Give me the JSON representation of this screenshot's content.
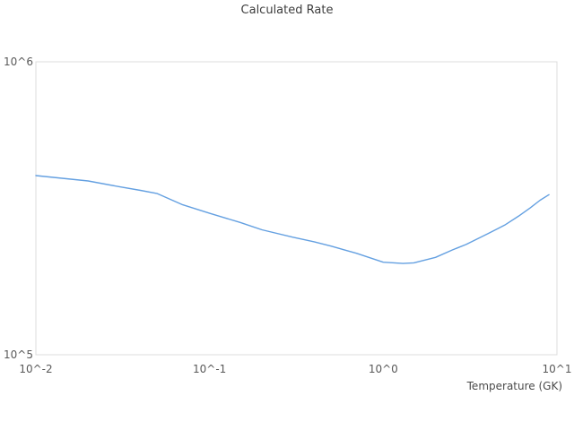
{
  "title": "Calculated Rate",
  "colors": {
    "line": "#64a0e1",
    "frame": "#dcdcdc",
    "title_text": "#3c3c3c",
    "tick_text": "#595959",
    "axis_title_text": "#4a4a4a",
    "background": "#ffffff"
  },
  "chart_data": {
    "type": "line",
    "title": "Calculated Rate",
    "xlabel": "Temperature (GK)",
    "ylabel": "",
    "x_scale": "log",
    "y_scale": "log",
    "xlim": [
      0.01,
      10
    ],
    "ylim": [
      100000,
      1000000
    ],
    "grid": false,
    "legend": "none",
    "x_tick_values": [
      0.01,
      0.1,
      1,
      10
    ],
    "x_tick_labels": [
      "10^-2",
      "10^-1",
      "10^0",
      "10^1"
    ],
    "y_tick_values": [
      100000,
      1000000
    ],
    "y_tick_labels": [
      "10^5",
      "10^6"
    ],
    "series": [
      {
        "name": "Calculated Rate",
        "x": [
          0.01,
          0.015,
          0.02,
          0.03,
          0.04,
          0.05,
          0.07,
          0.1,
          0.15,
          0.2,
          0.3,
          0.4,
          0.5,
          0.7,
          1.0,
          1.3,
          1.5,
          2.0,
          2.5,
          3.0,
          4.0,
          5.0,
          6.0,
          7.0,
          8.0,
          9.0
        ],
        "y": [
          409000,
          399000,
          392000,
          375000,
          364000,
          355000,
          325000,
          304000,
          283000,
          267000,
          252000,
          243000,
          235000,
          222000,
          207000,
          205000,
          206000,
          215000,
          228000,
          238000,
          259000,
          277000,
          297000,
          317000,
          337000,
          352000
        ]
      }
    ]
  }
}
